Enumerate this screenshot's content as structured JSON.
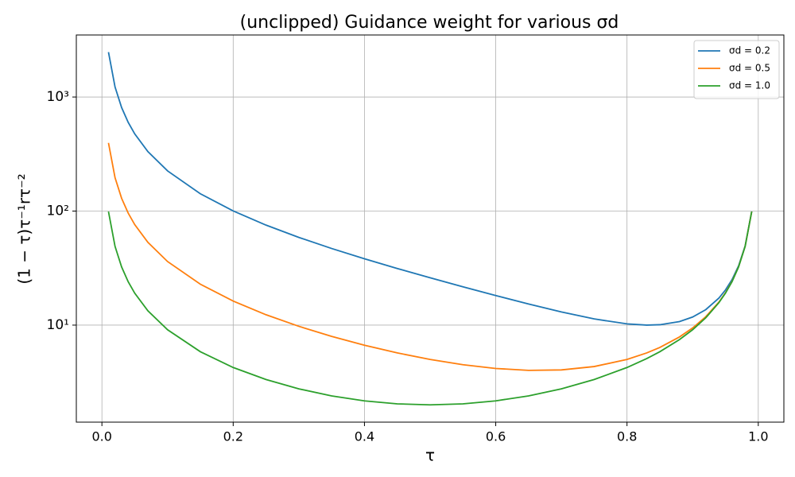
{
  "chart_data": {
    "type": "line",
    "title": "(unclipped) Guidance weight for various σd",
    "x_label": "τ",
    "y_label": "(1 − τ)τ⁻¹rτ⁻²",
    "x": [
      0.01,
      0.02,
      0.03,
      0.04,
      0.05,
      0.07,
      0.1,
      0.15,
      0.2,
      0.25,
      0.3,
      0.35,
      0.4,
      0.45,
      0.5,
      0.55,
      0.6,
      0.65,
      0.7,
      0.75,
      0.8,
      0.83,
      0.85,
      0.88,
      0.9,
      0.92,
      0.94,
      0.95,
      0.96,
      0.97,
      0.98,
      0.99
    ],
    "series": [
      {
        "name": "σd = 0.2",
        "color": "#1f77b4",
        "values": [
          2475,
          1225,
          808.4,
          600,
          475.1,
          332.2,
          225.1,
          141.8,
          100.3,
          75.33,
          58.76,
          46.97,
          38.17,
          31.37,
          26,
          21.68,
          18.17,
          15.32,
          13.05,
          11.33,
          10.25,
          10,
          10.08,
          10.74,
          11.78,
          13.67,
          17.26,
          20.32,
          25.04,
          33.11,
          49.51,
          99.25
        ]
      },
      {
        "name": "σd = 0.5",
        "color": "#ff7f0e",
        "values": [
          396,
          196,
          129.4,
          96.04,
          76.05,
          53.22,
          36.11,
          22.84,
          16.25,
          12.33,
          9.762,
          7.967,
          6.667,
          5.707,
          5,
          4.495,
          4.167,
          4.011,
          4.048,
          4.333,
          5,
          5.702,
          6.373,
          7.879,
          9.444,
          11.85,
          15.92,
          19.21,
          24.17,
          32.46,
          49.08,
          99.04
        ]
      },
      {
        "name": "σd = 1.0",
        "color": "#2ca02c",
        "values": [
          99.01,
          49.02,
          32.36,
          24.04,
          19.05,
          13.36,
          9.111,
          5.843,
          4.25,
          3.333,
          2.762,
          2.396,
          2.167,
          2.04,
          2,
          2.04,
          2.167,
          2.396,
          2.762,
          3.333,
          4.25,
          5.087,
          5.843,
          7.47,
          9.111,
          11.59,
          15.73,
          19.05,
          24.04,
          32.36,
          49.02,
          99.01
        ]
      }
    ],
    "xlim": [
      -0.039,
      1.039
    ],
    "xticks": [
      {
        "value": 0,
        "label": "0.0"
      },
      0.2,
      0.4,
      0.6,
      0.8,
      {
        "value": 1,
        "label": "1.0"
      }
    ],
    "ylim": [
      1.41,
      3500
    ],
    "yticks": [
      {
        "value": 10,
        "label": "10¹"
      },
      {
        "value": 100,
        "label": "10²"
      },
      {
        "value": 1000,
        "label": "10³"
      }
    ],
    "y_scale": "log",
    "grid": true,
    "legend": "upper right"
  }
}
